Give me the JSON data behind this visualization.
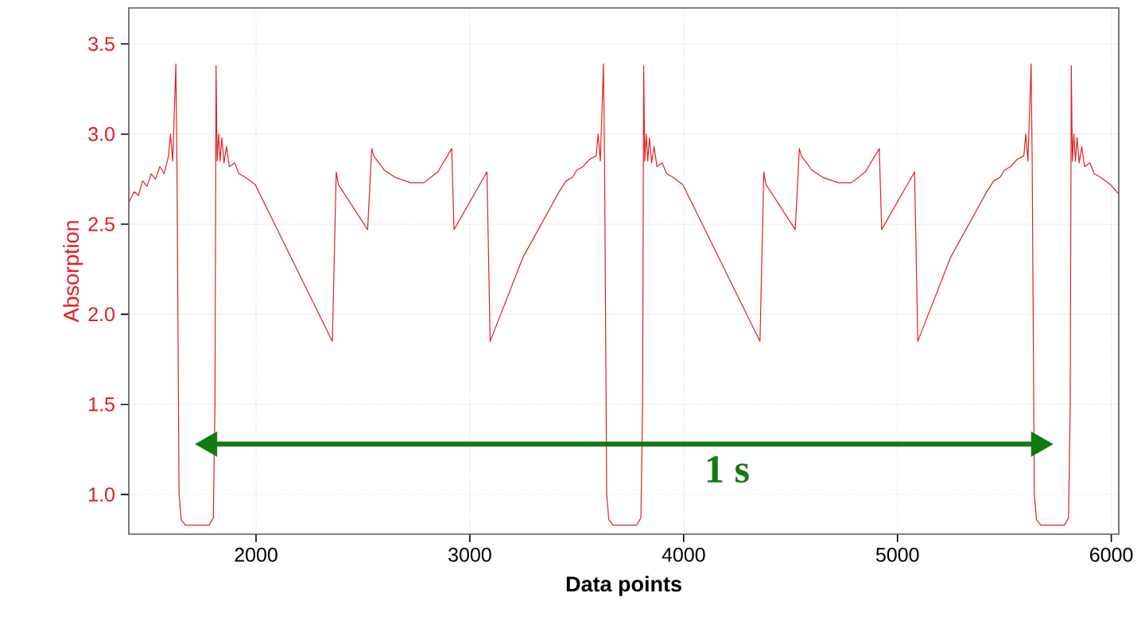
{
  "chart_data": {
    "type": "line",
    "xlabel": "Data points",
    "ylabel": "Absorption",
    "xlim": [
      1405,
      6035
    ],
    "ylim": [
      0.78,
      3.7
    ],
    "xticks": [
      2000,
      3000,
      4000,
      5000,
      6000
    ],
    "yticks": [
      {
        "value": 1,
        "label": "1.0"
      },
      {
        "value": 1.5,
        "label": "1.5"
      },
      {
        "value": 2,
        "label": "2.0"
      },
      {
        "value": 2.5,
        "label": "2.5"
      },
      {
        "value": 3,
        "label": "3.0"
      },
      {
        "value": 3.5,
        "label": "3.5"
      }
    ],
    "grid": true,
    "marker": "none",
    "line_style": "solid",
    "annotations": [
      "1 s"
    ],
    "series": [
      {
        "color": "#e02020",
        "x": [
          1405,
          1430,
          1450,
          1470,
          1490,
          1510,
          1530,
          1550,
          1570,
          1591,
          1600,
          1610,
          1620,
          1625,
          1630,
          1640,
          1650,
          1670,
          1780,
          1800,
          1808,
          1813,
          1818,
          1825,
          1832,
          1840,
          1850,
          1862,
          1875,
          1900,
          1920,
          1950,
          1996,
          2357,
          2375,
          2385,
          2522,
          2541,
          2550,
          2600,
          2650,
          2724,
          2785,
          2850,
          2915,
          2926,
          3080,
          3095,
          3250,
          3420,
          3450,
          3480,
          3500,
          3530,
          3560,
          3591,
          3600,
          3610,
          3620,
          3625,
          3630,
          3640,
          3650,
          3670,
          3780,
          3800,
          3808,
          3813,
          3818,
          3825,
          3832,
          3840,
          3850,
          3862,
          3875,
          3900,
          3920,
          3950,
          3996,
          4357,
          4375,
          4385,
          4522,
          4541,
          4550,
          4600,
          4650,
          4724,
          4785,
          4850,
          4915,
          4926,
          5080,
          5095,
          5250,
          5420,
          5450,
          5480,
          5500,
          5530,
          5560,
          5591,
          5600,
          5610,
          5620,
          5625,
          5630,
          5640,
          5650,
          5670,
          5780,
          5800,
          5808,
          5813,
          5818,
          5825,
          5832,
          5840,
          5850,
          5862,
          5875,
          5900,
          5920,
          5950,
          5996,
          6033
        ],
        "values": [
          2.62,
          2.68,
          2.66,
          2.74,
          2.71,
          2.78,
          2.75,
          2.82,
          2.78,
          2.88,
          3.0,
          2.85,
          3.2,
          3.39,
          2.85,
          1.0,
          0.86,
          0.83,
          0.83,
          0.87,
          1.5,
          3.38,
          2.85,
          3.0,
          2.85,
          2.98,
          2.84,
          2.93,
          2.82,
          2.84,
          2.78,
          2.76,
          2.72,
          1.85,
          2.79,
          2.72,
          2.47,
          2.92,
          2.88,
          2.8,
          2.76,
          2.73,
          2.73,
          2.79,
          2.92,
          2.47,
          2.79,
          1.85,
          2.32,
          2.685,
          2.74,
          2.76,
          2.8,
          2.82,
          2.86,
          2.88,
          3.0,
          2.85,
          3.2,
          3.39,
          2.85,
          1.0,
          0.86,
          0.83,
          0.83,
          0.87,
          1.5,
          3.38,
          2.85,
          3.0,
          2.85,
          2.98,
          2.84,
          2.93,
          2.82,
          2.84,
          2.78,
          2.76,
          2.72,
          1.85,
          2.79,
          2.72,
          2.47,
          2.92,
          2.88,
          2.8,
          2.76,
          2.73,
          2.73,
          2.79,
          2.92,
          2.47,
          2.79,
          1.85,
          2.32,
          2.685,
          2.74,
          2.76,
          2.8,
          2.82,
          2.86,
          2.88,
          3.0,
          2.85,
          3.2,
          3.39,
          2.85,
          1.0,
          0.86,
          0.83,
          0.83,
          0.87,
          1.5,
          3.38,
          2.85,
          3.0,
          2.85,
          2.98,
          2.84,
          2.93,
          2.82,
          2.84,
          2.78,
          2.76,
          2.72,
          2.67
        ]
      }
    ]
  }
}
